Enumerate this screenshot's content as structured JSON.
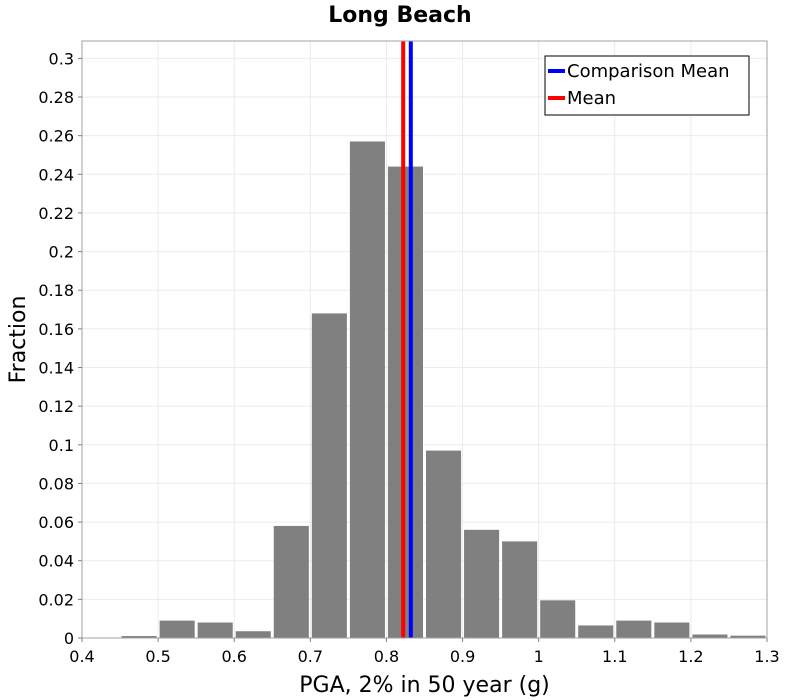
{
  "chart_data": {
    "type": "bar",
    "title": "Long Beach",
    "xlabel": "PGA, 2% in 50 year (g)",
    "ylabel": "Fraction",
    "xlim": [
      0.4,
      1.3
    ],
    "ylim": [
      0,
      0.309
    ],
    "xticks": [
      0.4,
      0.5,
      0.6,
      0.7,
      0.8,
      0.9,
      1,
      1.1,
      1.2,
      1.3
    ],
    "xtick_labels": [
      "0.4",
      "0.5",
      "0.6",
      "0.7",
      "0.8",
      "0.9",
      "1",
      "1.1",
      "1.2",
      "1.3"
    ],
    "yticks": [
      0,
      0.02,
      0.04,
      0.06,
      0.08,
      0.1,
      0.12,
      0.14,
      0.16,
      0.18,
      0.2,
      0.22,
      0.24,
      0.26,
      0.28,
      0.3
    ],
    "ytick_labels": [
      "0",
      "0.02",
      "0.04",
      "0.06",
      "0.08",
      "0.1",
      "0.12",
      "0.14",
      "0.16",
      "0.18",
      "0.2",
      "0.22",
      "0.24",
      "0.26",
      "0.28",
      "0.3"
    ],
    "grid": true,
    "legend_position": "top-right",
    "bar_color": "#808080",
    "bin_width": 0.05,
    "bars": [
      {
        "start": 0.4,
        "value": 0.0
      },
      {
        "start": 0.45,
        "value": 0.001
      },
      {
        "start": 0.5,
        "value": 0.009
      },
      {
        "start": 0.55,
        "value": 0.008
      },
      {
        "start": 0.6,
        "value": 0.0035
      },
      {
        "start": 0.65,
        "value": 0.058
      },
      {
        "start": 0.7,
        "value": 0.168
      },
      {
        "start": 0.75,
        "value": 0.257
      },
      {
        "start": 0.8,
        "value": 0.244
      },
      {
        "start": 0.85,
        "value": 0.097
      },
      {
        "start": 0.9,
        "value": 0.056
      },
      {
        "start": 0.95,
        "value": 0.05
      },
      {
        "start": 1.0,
        "value": 0.0195
      },
      {
        "start": 1.05,
        "value": 0.0065
      },
      {
        "start": 1.1,
        "value": 0.009
      },
      {
        "start": 1.15,
        "value": 0.008
      },
      {
        "start": 1.2,
        "value": 0.0018
      },
      {
        "start": 1.25,
        "value": 0.0012
      }
    ],
    "lines": [
      {
        "name": "Comparison Mean",
        "x": 0.832,
        "color": "#0000ff"
      },
      {
        "name": "Mean",
        "x": 0.822,
        "color": "#ff0000"
      }
    ]
  }
}
